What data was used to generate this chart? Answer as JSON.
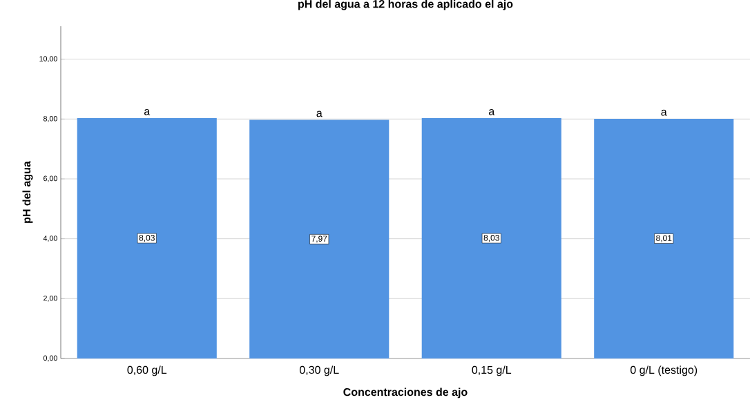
{
  "chart_data": {
    "type": "bar",
    "title": "pH del agua a 12 horas de aplicado el ajo",
    "xlabel": "Concentraciones de ajo",
    "ylabel": "pH del agua",
    "categories": [
      "0,60 g/L",
      "0,30 g/L",
      "0,15 g/L",
      "0 g/L (testigo)"
    ],
    "values": [
      8.03,
      7.97,
      8.03,
      8.01
    ],
    "value_labels": [
      "8,03",
      "7,97",
      "8,03",
      "8,01"
    ],
    "color": "#5294e2",
    "ylim": [
      0,
      11.1
    ],
    "yticks": [
      {
        "value": 0,
        "label": "0,00"
      },
      {
        "value": 2,
        "label": "2,00"
      },
      {
        "value": 4,
        "label": "4,00"
      },
      {
        "value": 6,
        "label": "6,00"
      },
      {
        "value": 8,
        "label": "8,00"
      },
      {
        "value": 10,
        "label": "10,00"
      }
    ],
    "grid": "y",
    "annotations": [
      {
        "text": "a",
        "x": "0,60 g/L",
        "y": 8.03
      },
      {
        "text": "a",
        "x": "0,30 g/L",
        "y": 7.97
      },
      {
        "text": "a",
        "x": "0,15 g/L",
        "y": 8.03
      },
      {
        "text": "a",
        "x": "0 g/L (testigo)",
        "y": 8.01
      }
    ]
  }
}
